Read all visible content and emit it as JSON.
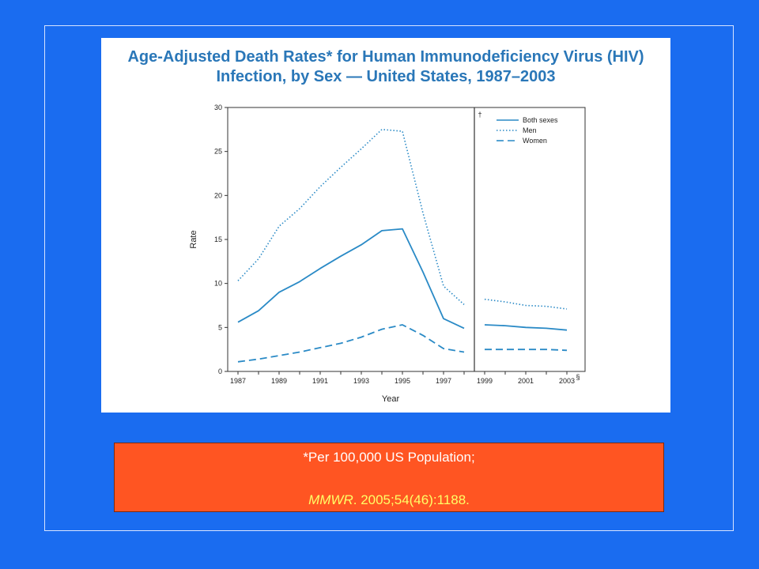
{
  "colors": {
    "background": "#1a6cf0",
    "footnote_bg": "#ff5522",
    "line": "#2a8ac6",
    "title": "#2a77b8"
  },
  "figure": {
    "title_line1": "Age-Adjusted Death Rates* for Human Immunodeficiency Virus (HIV)",
    "title_line2": "Infection, by Sex — United States, 1987–2003"
  },
  "footnote": {
    "line1": "*Per 100,000 US Population;",
    "journal": "MMWR",
    "citation": ". 2005;54(46):1188."
  },
  "chart_data": {
    "type": "line",
    "title": "Age-Adjusted Death Rates* for Human Immunodeficiency Virus (HIV) Infection, by Sex — United States, 1987–2003",
    "xlabel": "Year",
    "ylabel": "Rate",
    "ylim": [
      0,
      30
    ],
    "yticks": [
      "0",
      "5",
      "10",
      "15",
      "20",
      "25",
      "30"
    ],
    "xticks": [
      "1987",
      "1989",
      "1991",
      "1993",
      "1995",
      "1997",
      "1999",
      "2001",
      "2003"
    ],
    "break_markers": {
      "dagger": "†",
      "section": "§"
    },
    "legend_position": "top-right",
    "grid": false,
    "segments": [
      {
        "x": [
          1987,
          1988,
          1989,
          1990,
          1991,
          1992,
          1993,
          1994,
          1995,
          1996,
          1997,
          1998
        ],
        "series": [
          {
            "name": "Both sexes",
            "style": "solid",
            "values": [
              5.6,
              6.9,
              9.0,
              10.2,
              11.7,
              13.1,
              14.4,
              16.0,
              16.2,
              11.3,
              6.0,
              4.9
            ]
          },
          {
            "name": "Men",
            "style": "dotted",
            "values": [
              10.3,
              12.8,
              16.5,
              18.5,
              21.0,
              23.2,
              25.3,
              27.5,
              27.3,
              18.0,
              9.7,
              7.6
            ]
          },
          {
            "name": "Women",
            "style": "dashed",
            "values": [
              1.1,
              1.4,
              1.8,
              2.2,
              2.7,
              3.2,
              3.9,
              4.8,
              5.3,
              4.1,
              2.6,
              2.2
            ]
          }
        ]
      },
      {
        "x": [
          1999,
          2000,
          2001,
          2002,
          2003
        ],
        "series": [
          {
            "name": "Both sexes",
            "style": "solid",
            "values": [
              5.3,
              5.2,
              5.0,
              4.9,
              4.7
            ]
          },
          {
            "name": "Men",
            "style": "dotted",
            "values": [
              8.2,
              7.9,
              7.5,
              7.4,
              7.1
            ]
          },
          {
            "name": "Women",
            "style": "dashed",
            "values": [
              2.5,
              2.5,
              2.5,
              2.5,
              2.4
            ]
          }
        ]
      }
    ]
  }
}
